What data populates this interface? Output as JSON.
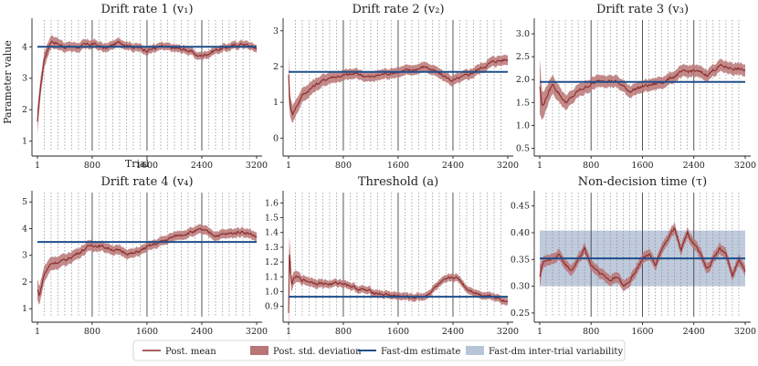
{
  "figure": {
    "ylabel": "Parameter value",
    "xlabel": "Trial",
    "legend": {
      "placement": "bottom-center",
      "items": [
        {
          "label": "Post. mean",
          "kind": "line",
          "color": "#8b2a2a"
        },
        {
          "label": "Post. std. deviation",
          "kind": "patch",
          "color": "#b97676"
        },
        {
          "label": "Fast-dm estimate",
          "kind": "line",
          "color": "#1f4e8c"
        },
        {
          "label": "Fast-dm inter-trial variability",
          "kind": "patch",
          "color": "#b8c4d8"
        }
      ]
    }
  },
  "colors": {
    "mean": "#8b2a2a",
    "band": "#b97676",
    "fastdm": "#1f4e8c",
    "variability": "#b8c4d8",
    "block_line": "#444444",
    "dotted_line": "#888888"
  },
  "chart_data": [
    {
      "type": "line",
      "panel": 1,
      "title": "Drift rate 1 (v₁)",
      "xlim": [
        1,
        3200
      ],
      "xticks": [
        1,
        800,
        1600,
        2400,
        3200
      ],
      "ylim": [
        0.7,
        4.85
      ],
      "yticks": [
        1,
        2,
        3,
        4
      ],
      "fastdm": 4.0,
      "mean_x": [
        1,
        40,
        100,
        200,
        300,
        400,
        600,
        800,
        1000,
        1200,
        1400,
        1600,
        1800,
        2000,
        2200,
        2350,
        2450,
        2600,
        2800,
        3000,
        3200
      ],
      "mean_y": [
        1.6,
        2.6,
        3.6,
        4.2,
        4.1,
        4.0,
        4.0,
        4.1,
        3.95,
        4.15,
        4.0,
        3.9,
        4.0,
        3.95,
        3.9,
        3.7,
        3.75,
        3.9,
        4.0,
        4.1,
        3.95
      ],
      "sd": [
        0.4,
        0.3,
        0.25,
        0.2,
        0.18,
        0.15,
        0.15,
        0.14,
        0.14,
        0.13,
        0.13,
        0.13,
        0.12,
        0.12,
        0.12,
        0.12,
        0.12,
        0.12,
        0.12,
        0.12,
        0.12
      ]
    },
    {
      "type": "line",
      "panel": 2,
      "title": "Drift rate 2 (v₂)",
      "xlim": [
        1,
        3200
      ],
      "xticks": [
        1,
        800,
        1600,
        2400,
        3200
      ],
      "ylim": [
        -0.35,
        3.3
      ],
      "yticks": [
        0,
        1,
        2,
        3
      ],
      "fastdm": 1.85,
      "mean_x": [
        1,
        20,
        60,
        120,
        200,
        400,
        600,
        800,
        1000,
        1200,
        1400,
        1600,
        1800,
        2000,
        2200,
        2400,
        2600,
        2800,
        3000,
        3200
      ],
      "mean_y": [
        1.8,
        0.9,
        0.7,
        0.9,
        1.2,
        1.5,
        1.7,
        1.75,
        1.8,
        1.7,
        1.8,
        1.85,
        1.9,
        2.0,
        1.8,
        1.6,
        1.75,
        1.95,
        2.15,
        2.2
      ],
      "sd": [
        0.6,
        0.3,
        0.25,
        0.22,
        0.2,
        0.18,
        0.16,
        0.15,
        0.14,
        0.14,
        0.14,
        0.14,
        0.14,
        0.14,
        0.14,
        0.14,
        0.14,
        0.14,
        0.14,
        0.14
      ]
    },
    {
      "type": "line",
      "panel": 3,
      "title": "Drift rate 3 (v₃)",
      "xlim": [
        1,
        3200
      ],
      "xticks": [
        1,
        800,
        1600,
        2400,
        3200
      ],
      "ylim": [
        0.45,
        3.3
      ],
      "yticks": [
        0.5,
        1.0,
        1.5,
        2.0,
        2.5,
        3.0
      ],
      "fastdm": 1.95,
      "mean_x": [
        1,
        40,
        100,
        200,
        300,
        400,
        500,
        600,
        800,
        1000,
        1200,
        1400,
        1600,
        1800,
        2000,
        2200,
        2400,
        2600,
        2800,
        3000,
        3200
      ],
      "mean_y": [
        1.85,
        1.4,
        1.6,
        1.9,
        1.7,
        1.5,
        1.6,
        1.75,
        1.9,
        2.0,
        1.95,
        1.75,
        1.85,
        1.9,
        2.0,
        2.15,
        2.2,
        2.1,
        2.3,
        2.25,
        2.2
      ],
      "sd": [
        0.6,
        0.3,
        0.25,
        0.2,
        0.18,
        0.16,
        0.15,
        0.14,
        0.14,
        0.13,
        0.13,
        0.13,
        0.13,
        0.13,
        0.13,
        0.13,
        0.13,
        0.13,
        0.13,
        0.13,
        0.13
      ]
    },
    {
      "type": "line",
      "panel": 4,
      "title": "Drift rate 4 (v₄)",
      "xlim": [
        1,
        3200
      ],
      "xticks": [
        1,
        800,
        1600,
        2400,
        3200
      ],
      "ylim": [
        0.7,
        5.35
      ],
      "yticks": [
        1,
        2,
        3,
        4,
        5
      ],
      "fastdm": 3.5,
      "mean_x": [
        1,
        30,
        100,
        200,
        400,
        600,
        800,
        1000,
        1200,
        1400,
        1600,
        1800,
        2000,
        2200,
        2400,
        2600,
        2800,
        3000,
        3200
      ],
      "mean_y": [
        1.7,
        1.5,
        2.3,
        2.7,
        2.8,
        3.1,
        3.4,
        3.3,
        3.15,
        3.05,
        3.3,
        3.5,
        3.7,
        3.85,
        3.95,
        3.75,
        3.8,
        3.9,
        3.7
      ],
      "sd": [
        0.4,
        0.35,
        0.3,
        0.25,
        0.22,
        0.2,
        0.2,
        0.18,
        0.18,
        0.17,
        0.17,
        0.17,
        0.17,
        0.17,
        0.17,
        0.17,
        0.17,
        0.17,
        0.17
      ]
    },
    {
      "type": "line",
      "panel": 5,
      "title": "Threshold (a)",
      "xlim": [
        1,
        3200
      ],
      "xticks": [
        1,
        800,
        1600,
        2400,
        3200
      ],
      "ylim": [
        0.83,
        1.67
      ],
      "yticks": [
        0.9,
        1.0,
        1.1,
        1.2,
        1.3,
        1.4,
        1.5,
        1.6
      ],
      "fastdm": 0.965,
      "mean_x": [
        1,
        15,
        40,
        100,
        200,
        400,
        600,
        800,
        1000,
        1200,
        1400,
        1600,
        1800,
        2000,
        2200,
        2400,
        2500,
        2600,
        2800,
        3000,
        3200
      ],
      "mean_y": [
        0.85,
        1.3,
        1.05,
        1.1,
        1.08,
        1.06,
        1.05,
        1.06,
        1.02,
        1.0,
        0.98,
        0.97,
        0.96,
        0.97,
        1.05,
        1.1,
        1.08,
        1.02,
        0.98,
        0.97,
        0.93
      ],
      "sd": [
        0.3,
        0.1,
        0.05,
        0.04,
        0.03,
        0.03,
        0.025,
        0.025,
        0.025,
        0.025,
        0.025,
        0.025,
        0.025,
        0.025,
        0.025,
        0.025,
        0.025,
        0.025,
        0.025,
        0.025,
        0.025
      ]
    },
    {
      "type": "line",
      "panel": 6,
      "title": "Non-decision time (τ)",
      "xlim": [
        1,
        3200
      ],
      "xticks": [
        1,
        800,
        1600,
        2400,
        3200
      ],
      "ylim": [
        0.243,
        0.475
      ],
      "yticks": [
        0.25,
        0.3,
        0.35,
        0.4,
        0.45
      ],
      "fastdm": 0.352,
      "variability": [
        0.3,
        0.404
      ],
      "mean_x": [
        1,
        40,
        100,
        200,
        300,
        400,
        500,
        600,
        700,
        800,
        900,
        1000,
        1100,
        1200,
        1300,
        1400,
        1500,
        1600,
        1700,
        1800,
        1900,
        2000,
        2100,
        2200,
        2300,
        2400,
        2500,
        2600,
        2700,
        2800,
        2900,
        3000,
        3100,
        3200
      ],
      "mean_y": [
        0.32,
        0.34,
        0.35,
        0.35,
        0.36,
        0.34,
        0.33,
        0.35,
        0.37,
        0.34,
        0.33,
        0.32,
        0.31,
        0.32,
        0.3,
        0.31,
        0.33,
        0.35,
        0.36,
        0.34,
        0.37,
        0.39,
        0.41,
        0.37,
        0.4,
        0.38,
        0.36,
        0.33,
        0.35,
        0.37,
        0.36,
        0.32,
        0.35,
        0.33
      ],
      "sd": [
        0.02,
        0.012,
        0.01,
        0.01,
        0.01,
        0.01,
        0.01,
        0.01,
        0.01,
        0.01,
        0.01,
        0.01,
        0.01,
        0.01,
        0.01,
        0.01,
        0.01,
        0.01,
        0.01,
        0.01,
        0.01,
        0.01,
        0.01,
        0.01,
        0.01,
        0.01,
        0.01,
        0.01,
        0.01,
        0.01,
        0.01,
        0.01,
        0.01,
        0.01
      ]
    }
  ],
  "block_lines": [
    800,
    1600,
    2400
  ],
  "dotted_lines_step": 100
}
